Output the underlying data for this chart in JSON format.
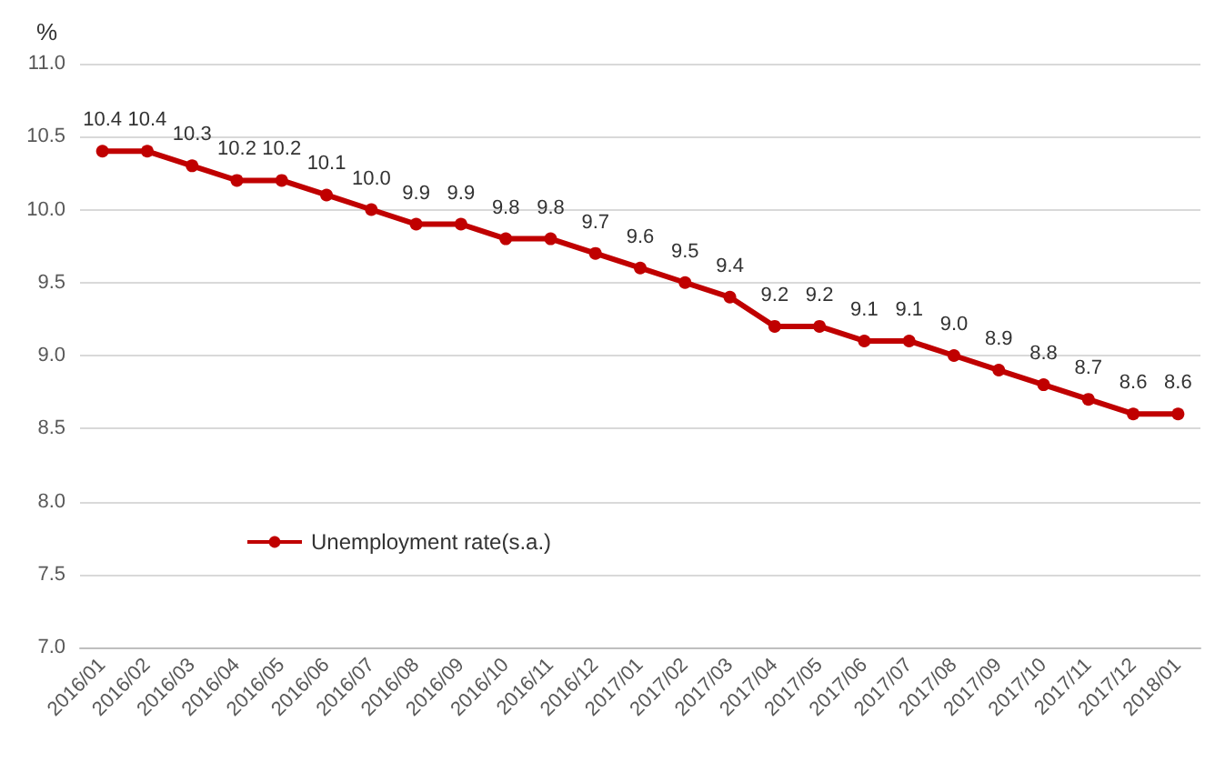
{
  "chart_data": {
    "type": "line",
    "ylabel": "%",
    "categories": [
      "2016/01",
      "2016/02",
      "2016/03",
      "2016/04",
      "2016/05",
      "2016/06",
      "2016/07",
      "2016/08",
      "2016/09",
      "2016/10",
      "2016/11",
      "2016/12",
      "2017/01",
      "2017/02",
      "2017/03",
      "2017/04",
      "2017/05",
      "2017/06",
      "2017/07",
      "2017/08",
      "2017/09",
      "2017/10",
      "2017/11",
      "2017/12",
      "2018/01"
    ],
    "series": [
      {
        "name": "Unemployment rate(s.a.)",
        "color": "#c00000",
        "values": [
          10.4,
          10.4,
          10.3,
          10.2,
          10.2,
          10.1,
          10.0,
          9.9,
          9.9,
          9.8,
          9.8,
          9.7,
          9.6,
          9.5,
          9.4,
          9.2,
          9.2,
          9.1,
          9.1,
          9.0,
          8.9,
          8.8,
          8.7,
          8.6,
          8.6
        ],
        "value_labels": [
          "10.4",
          "10.4",
          "10.3",
          "10.2",
          "10.2",
          "10.1",
          "10.0",
          "9.9",
          "9.9",
          "9.8",
          "9.8",
          "9.7",
          "9.6",
          "9.5",
          "9.4",
          "9.2",
          "9.2",
          "9.1",
          "9.1",
          "9.0",
          "8.9",
          "8.8",
          "8.7",
          "8.6",
          "8.6"
        ]
      }
    ],
    "ylim": [
      7.0,
      11.0
    ],
    "yticks": [
      {
        "value": 7.0,
        "label": "7.0"
      },
      {
        "value": 7.5,
        "label": "7.5"
      },
      {
        "value": 8.0,
        "label": "8.0"
      },
      {
        "value": 8.5,
        "label": "8.5"
      },
      {
        "value": 9.0,
        "label": "9.0"
      },
      {
        "value": 9.5,
        "label": "9.5"
      },
      {
        "value": 10.0,
        "label": "10.0"
      },
      {
        "value": 10.5,
        "label": "10.5"
      },
      {
        "value": 11.0,
        "label": "11.0"
      }
    ],
    "grid": "y",
    "legend": "bottom left",
    "marker": "circle",
    "line_style": "solid"
  }
}
